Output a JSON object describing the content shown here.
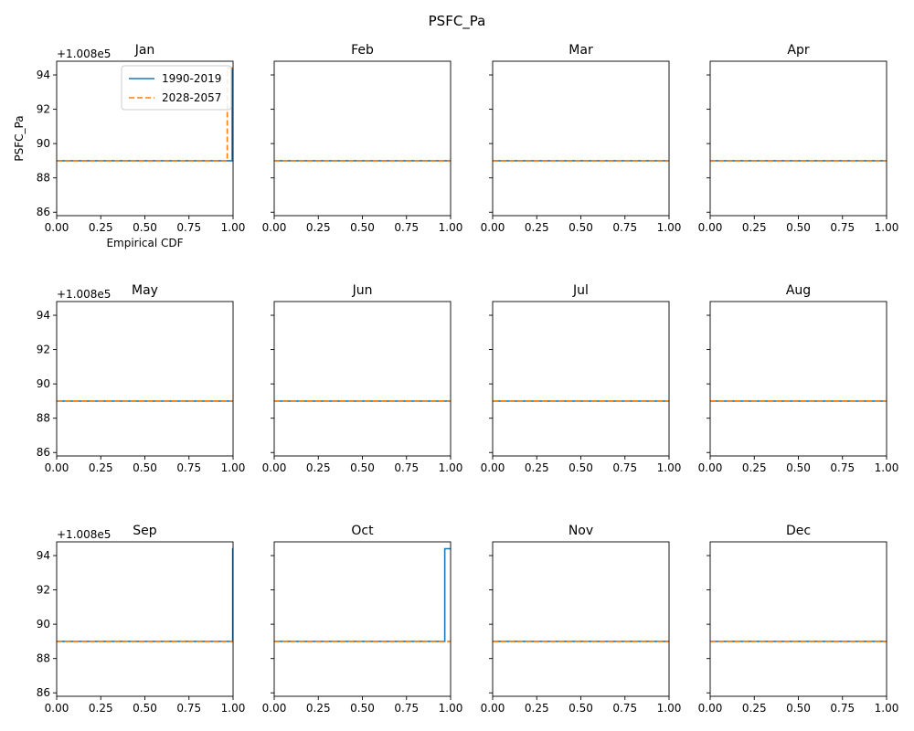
{
  "figure": {
    "suptitle": "PSFC_Pa",
    "ylabel": "PSFC_Pa",
    "xlabel": "Empirical CDF",
    "offset_text": "+1.008e5",
    "legend_position": "upper right"
  },
  "colors": {
    "series_1": "#1f77b4",
    "series_2": "#ff7f0e"
  },
  "chart_data": {
    "type": "line",
    "layout": "3x4 small multiples, shared x and y axes",
    "xlim": [
      0,
      1
    ],
    "ylim": [
      85.8,
      94.8
    ],
    "x_ticks": [
      "0.00",
      "0.25",
      "0.50",
      "0.75",
      "1.00"
    ],
    "y_ticks": [
      86,
      88,
      90,
      92,
      94
    ],
    "y_tick_labels": [
      "86",
      "88",
      "90",
      "92",
      "94"
    ],
    "y_offset": "+1.008e5",
    "series_names": [
      "1990-2019",
      "2028-2057"
    ],
    "panels": [
      {
        "title": "Jan",
        "series": [
          {
            "name": "1990-2019",
            "x": [
              0,
              0.995,
              0.995,
              1.0
            ],
            "y": [
              89.0,
              89.0,
              94.4,
              94.4
            ]
          },
          {
            "name": "2028-2057",
            "x": [
              0,
              0.967,
              0.967,
              1.0
            ],
            "y": [
              89.0,
              89.0,
              94.4,
              94.4
            ]
          }
        ]
      },
      {
        "title": "Feb",
        "series": [
          {
            "name": "1990-2019",
            "x": [
              0,
              1
            ],
            "y": [
              89.0,
              89.0
            ]
          },
          {
            "name": "2028-2057",
            "x": [
              0,
              1
            ],
            "y": [
              89.0,
              89.0
            ]
          }
        ]
      },
      {
        "title": "Mar",
        "series": [
          {
            "name": "1990-2019",
            "x": [
              0,
              1
            ],
            "y": [
              89.0,
              89.0
            ]
          },
          {
            "name": "2028-2057",
            "x": [
              0,
              1
            ],
            "y": [
              89.0,
              89.0
            ]
          }
        ]
      },
      {
        "title": "Apr",
        "series": [
          {
            "name": "1990-2019",
            "x": [
              0,
              1
            ],
            "y": [
              89.0,
              89.0
            ]
          },
          {
            "name": "2028-2057",
            "x": [
              0,
              1
            ],
            "y": [
              89.0,
              89.0
            ]
          }
        ]
      },
      {
        "title": "May",
        "series": [
          {
            "name": "1990-2019",
            "x": [
              0,
              1
            ],
            "y": [
              89.0,
              89.0
            ]
          },
          {
            "name": "2028-2057",
            "x": [
              0,
              1
            ],
            "y": [
              89.0,
              89.0
            ]
          }
        ]
      },
      {
        "title": "Jun",
        "series": [
          {
            "name": "1990-2019",
            "x": [
              0,
              1
            ],
            "y": [
              89.0,
              89.0
            ]
          },
          {
            "name": "2028-2057",
            "x": [
              0,
              1
            ],
            "y": [
              89.0,
              89.0
            ]
          }
        ]
      },
      {
        "title": "Jul",
        "series": [
          {
            "name": "1990-2019",
            "x": [
              0,
              1
            ],
            "y": [
              89.0,
              89.0
            ]
          },
          {
            "name": "2028-2057",
            "x": [
              0,
              1
            ],
            "y": [
              89.0,
              89.0
            ]
          }
        ]
      },
      {
        "title": "Aug",
        "series": [
          {
            "name": "1990-2019",
            "x": [
              0,
              1
            ],
            "y": [
              89.0,
              89.0
            ]
          },
          {
            "name": "2028-2057",
            "x": [
              0,
              1
            ],
            "y": [
              89.0,
              89.0
            ]
          }
        ]
      },
      {
        "title": "Sep",
        "series": [
          {
            "name": "1990-2019",
            "x": [
              0,
              0.998,
              0.998,
              1.0
            ],
            "y": [
              89.0,
              89.0,
              94.4,
              94.4
            ]
          },
          {
            "name": "2028-2057",
            "x": [
              0,
              1
            ],
            "y": [
              89.0,
              89.0
            ]
          }
        ]
      },
      {
        "title": "Oct",
        "series": [
          {
            "name": "1990-2019",
            "x": [
              0,
              0.967,
              0.967,
              1.0
            ],
            "y": [
              89.0,
              89.0,
              94.4,
              94.4
            ]
          },
          {
            "name": "2028-2057",
            "x": [
              0,
              1
            ],
            "y": [
              89.0,
              89.0
            ]
          }
        ]
      },
      {
        "title": "Nov",
        "series": [
          {
            "name": "1990-2019",
            "x": [
              0,
              1
            ],
            "y": [
              89.0,
              89.0
            ]
          },
          {
            "name": "2028-2057",
            "x": [
              0,
              1
            ],
            "y": [
              89.0,
              89.0
            ]
          }
        ]
      },
      {
        "title": "Dec",
        "series": [
          {
            "name": "1990-2019",
            "x": [
              0,
              1
            ],
            "y": [
              89.0,
              89.0
            ]
          },
          {
            "name": "2028-2057",
            "x": [
              0,
              1
            ],
            "y": [
              89.0,
              89.0
            ]
          }
        ]
      }
    ]
  }
}
